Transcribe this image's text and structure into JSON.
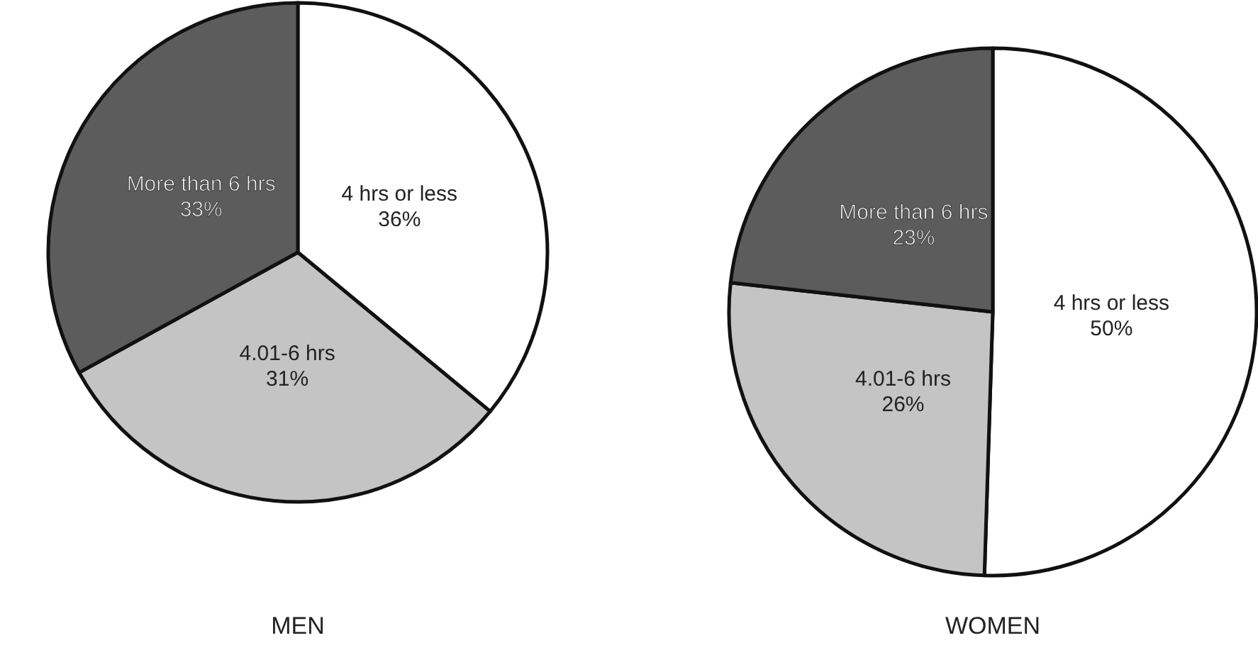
{
  "chart_data": [
    {
      "type": "pie",
      "title": "MEN",
      "categories": [
        "4 hrs or less",
        "4.01-6 hrs",
        "More than 6 hrs"
      ],
      "values": [
        36,
        31,
        33
      ],
      "value_labels": [
        "36%",
        "31%",
        "33%"
      ],
      "colors": [
        "#ffffff",
        "#c4c4c4",
        "#5c5c5c"
      ]
    },
    {
      "type": "pie",
      "title": "WOMEN",
      "categories": [
        "4 hrs or less",
        "4.01-6 hrs",
        "More than 6 hrs"
      ],
      "values": [
        50,
        26,
        23
      ],
      "value_labels": [
        "50%",
        "26%",
        "23%"
      ],
      "colors": [
        "#ffffff",
        "#c4c4c4",
        "#5c5c5c"
      ]
    }
  ]
}
